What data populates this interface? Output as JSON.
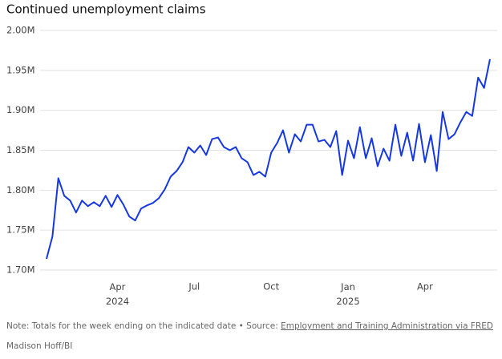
{
  "chart_data": {
    "type": "line",
    "title": "Continued unemployment claims",
    "categories": [
      null,
      null,
      null,
      null,
      null,
      null,
      null,
      null,
      null,
      null,
      null,
      null,
      "Apr 2024",
      null,
      null,
      null,
      null,
      null,
      null,
      null,
      null,
      null,
      null,
      null,
      null,
      "Jul",
      null,
      null,
      null,
      null,
      null,
      null,
      null,
      null,
      null,
      null,
      null,
      null,
      "Oct",
      null,
      null,
      null,
      null,
      null,
      null,
      null,
      null,
      null,
      null,
      null,
      null,
      "Jan 2025",
      null,
      null,
      null,
      null,
      null,
      null,
      null,
      null,
      null,
      null,
      null,
      null,
      "Apr",
      null,
      null,
      null,
      null,
      null,
      null,
      null,
      null,
      null,
      null,
      null
    ],
    "series": [
      {
        "name": "Continued claims",
        "color": "#1638e0",
        "values": [
          1.714,
          1.742,
          1.815,
          1.793,
          1.787,
          1.772,
          1.787,
          1.78,
          1.785,
          1.78,
          1.793,
          1.779,
          1.794,
          1.782,
          1.767,
          1.762,
          1.777,
          1.781,
          1.784,
          1.79,
          1.801,
          1.817,
          1.824,
          1.835,
          1.854,
          1.847,
          1.856,
          1.844,
          1.864,
          1.866,
          1.854,
          1.85,
          1.854,
          1.84,
          1.835,
          1.819,
          1.823,
          1.817,
          1.847,
          1.859,
          1.875,
          1.847,
          1.87,
          1.861,
          1.882,
          1.882,
          1.861,
          1.863,
          1.854,
          1.874,
          1.819,
          1.862,
          1.84,
          1.879,
          1.84,
          1.865,
          1.83,
          1.852,
          1.837,
          1.882,
          1.843,
          1.872,
          1.837,
          1.883,
          1.835,
          1.869,
          1.824,
          1.898,
          1.864,
          1.87,
          1.885,
          1.898,
          1.893,
          1.941,
          1.928,
          1.964
        ]
      }
    ],
    "ylim": [
      1.7,
      2.0
    ],
    "yticks": [
      {
        "value": 1.7,
        "label": "1.70M"
      },
      {
        "value": 1.75,
        "label": "1.75M"
      },
      {
        "value": 1.8,
        "label": "1.80M"
      },
      {
        "value": 1.85,
        "label": "1.85M"
      },
      {
        "value": 1.9,
        "label": "1.90M"
      },
      {
        "value": 1.95,
        "label": "1.95M"
      },
      {
        "value": 2.0,
        "label": "2.00M"
      }
    ],
    "grid": true,
    "note": "Note: Totals for the week ending on the indicated date • Source: ",
    "source": "Employment and Training Administration via FRED",
    "credit": "Madison Hoff/BI"
  }
}
